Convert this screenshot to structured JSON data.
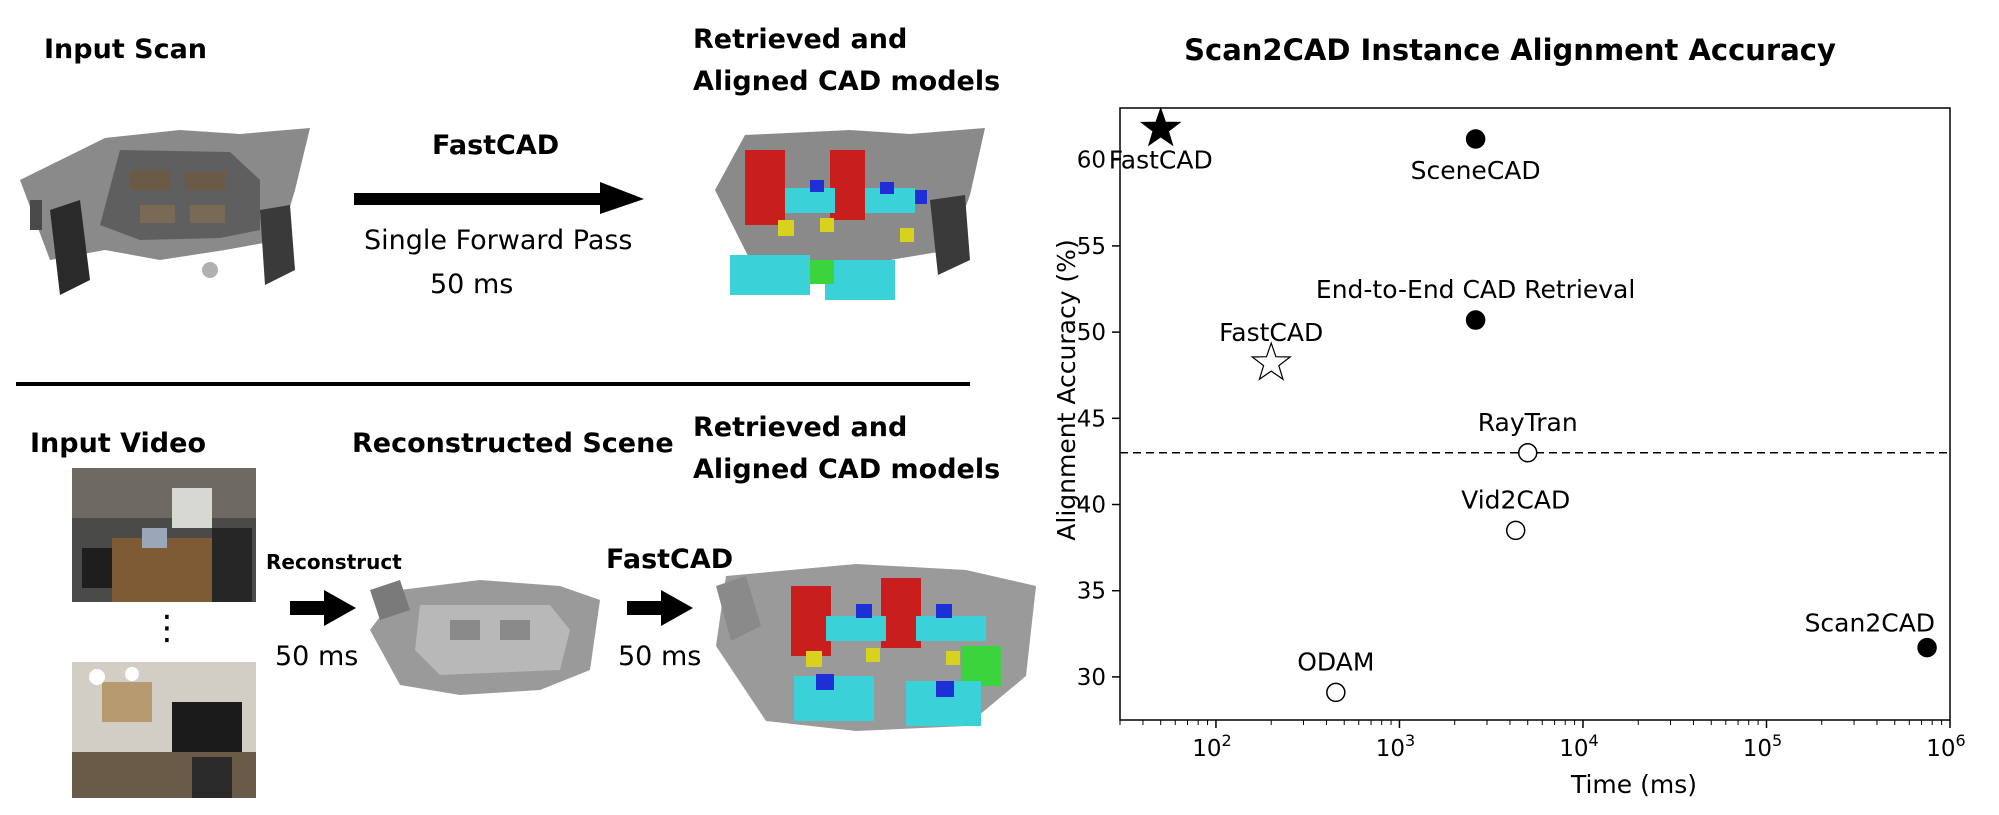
{
  "left": {
    "top": {
      "input_label": "Input Scan",
      "method_label": "FastCAD",
      "pass_label": "Single Forward Pass",
      "time_label": "50 ms",
      "output_label_line1": "Retrieved and",
      "output_label_line2": "Aligned CAD models"
    },
    "bottom": {
      "input_label": "Input Video",
      "ellipsis": "⋮",
      "reconstruct_label": "Reconstruct",
      "reconstruct_time": "50 ms",
      "scene_label": "Reconstructed Scene",
      "method_label": "FastCAD",
      "method_time": "50 ms",
      "output_label_line1": "Retrieved and",
      "output_label_line2": "Aligned CAD models"
    }
  },
  "colors": {
    "arrow": "#000000",
    "scan_gray": "#8a8a8a",
    "cad_red": "#c81e1e",
    "cad_cyan": "#3ad2d8",
    "cad_blue": "#1f2fd6",
    "cad_yellow": "#d6d21e",
    "cad_green": "#3cd43c"
  },
  "chart_data": {
    "type": "scatter",
    "title": "Scan2CAD Instance Alignment Accuracy",
    "xlabel": "Time (ms)",
    "ylabel": "Alignment Accuracy (%)",
    "xscale": "log",
    "xlim": [
      30,
      1000000
    ],
    "ylim": [
      27.5,
      63
    ],
    "xticks": [
      {
        "value": 100,
        "label": "10",
        "exp": "2"
      },
      {
        "value": 1000,
        "label": "10",
        "exp": "3"
      },
      {
        "value": 10000,
        "label": "10",
        "exp": "4"
      },
      {
        "value": 100000,
        "label": "10",
        "exp": "5"
      },
      {
        "value": 1000000,
        "label": "10",
        "exp": "6"
      }
    ],
    "yticks": [
      30,
      35,
      40,
      45,
      50,
      55,
      60
    ],
    "reference_line": {
      "y": 43,
      "style": "dashed"
    },
    "points": [
      {
        "name": "FastCAD",
        "x": 50,
        "y": 61.8,
        "marker": "star-filled",
        "label_pos": "below"
      },
      {
        "name": "SceneCAD",
        "x": 2600,
        "y": 61.2,
        "marker": "circle-filled",
        "label_pos": "below"
      },
      {
        "name": "End-to-End CAD Retrieval",
        "x": 2600,
        "y": 50.7,
        "marker": "circle-filled",
        "label_pos": "above"
      },
      {
        "name": "FastCAD",
        "x": 200,
        "y": 48.2,
        "marker": "star-open",
        "label_pos": "above"
      },
      {
        "name": "RayTran",
        "x": 5000,
        "y": 43,
        "marker": "circle-open",
        "label_pos": "above"
      },
      {
        "name": "Vid2CAD",
        "x": 4300,
        "y": 38.5,
        "marker": "circle-open",
        "label_pos": "above"
      },
      {
        "name": "Scan2CAD",
        "x": 750000,
        "y": 31.7,
        "marker": "circle-filled",
        "label_pos": "above-left"
      },
      {
        "name": "ODAM",
        "x": 450,
        "y": 29.1,
        "marker": "circle-open",
        "label_pos": "above"
      }
    ]
  }
}
